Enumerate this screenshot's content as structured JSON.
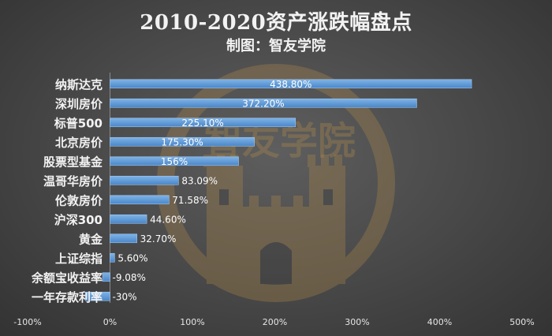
{
  "chart_data": {
    "type": "bar",
    "orientation": "horizontal",
    "title": "2010-2020资产涨跌幅盘点",
    "subtitle": "制图：智友学院",
    "categories": [
      "纳斯达克",
      "深圳房价",
      "标普500",
      "北京房价",
      "股票型基金",
      "温哥华房价",
      "伦敦房价",
      "沪深300",
      "黄金",
      "上证综指",
      "余额宝收益率",
      "一年存款利率"
    ],
    "values": [
      438.8,
      372.2,
      225.1,
      175.3,
      156,
      83.09,
      71.58,
      44.6,
      32.7,
      5.6,
      -9.08,
      -30
    ],
    "data_labels": [
      "438.80%",
      "372.20%",
      "225.10%",
      "175.30%",
      "156%",
      "83.09%",
      "71.58%",
      "44.60%",
      "32.70%",
      "5.60%",
      "-9.08%",
      "-30%"
    ],
    "xlim": [
      -100,
      500
    ],
    "x_ticks": [
      "-100%",
      "0%",
      "100%",
      "200%",
      "300%",
      "400%",
      "500%"
    ],
    "grid": false,
    "bar_color": "#5b9bd5",
    "watermark": "智友学院"
  }
}
